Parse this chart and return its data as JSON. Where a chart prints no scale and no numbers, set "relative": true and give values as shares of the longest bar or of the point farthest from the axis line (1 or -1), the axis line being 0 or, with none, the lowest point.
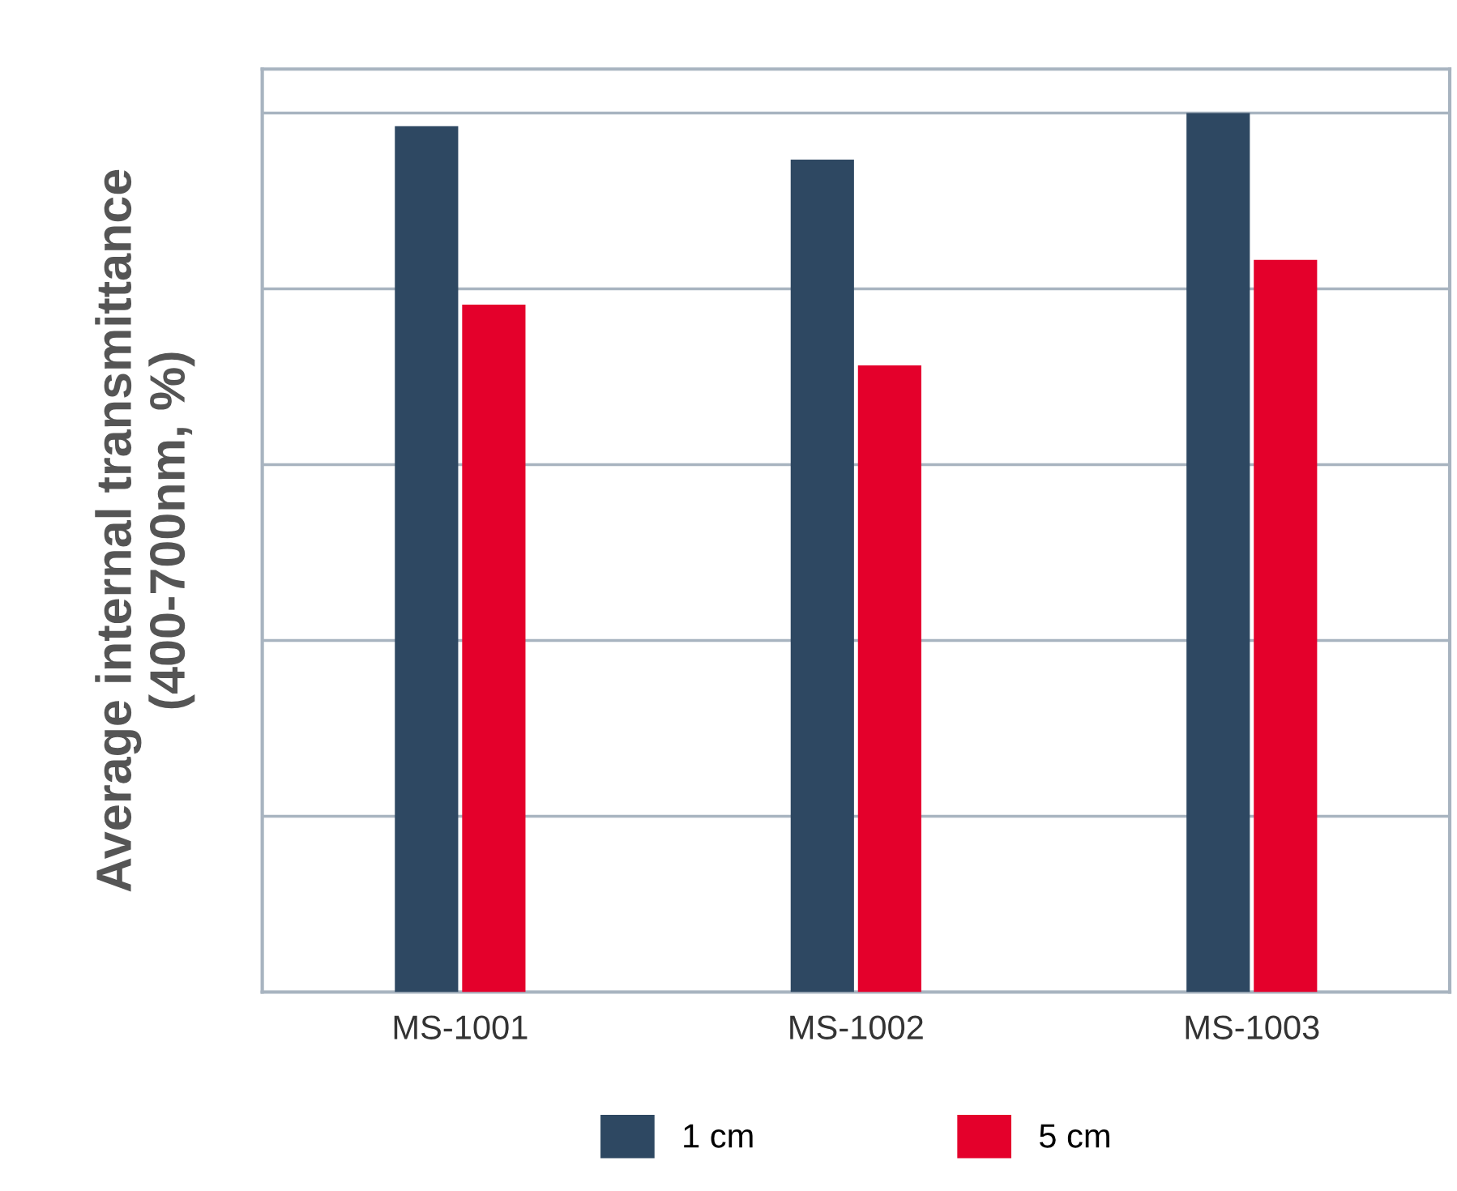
{
  "chart_data": {
    "type": "bar",
    "ylabel": "Average internal transmittance\n(400-700nm, %)",
    "relative": true,
    "categories": [
      "MS-1001",
      "MS-1002",
      "MS-1003"
    ],
    "series": [
      {
        "name": "1 cm",
        "color": "#2e4862",
        "values": [
          0.985,
          0.947,
          1.0
        ]
      },
      {
        "name": "5 cm",
        "color": "#e4002b",
        "values": [
          0.782,
          0.713,
          0.833
        ]
      }
    ],
    "grid": "y",
    "legend": "bottom"
  }
}
